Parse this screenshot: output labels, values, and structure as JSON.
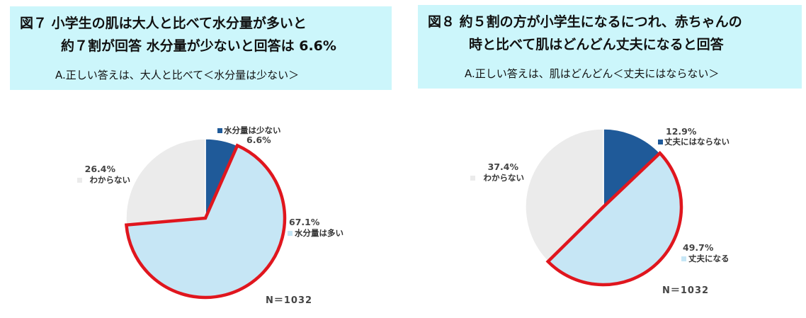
{
  "chart_data": [
    {
      "type": "pie",
      "title_line1": "図７ 小学生の肌は大人と比べて水分量が多いと",
      "title_line2": "約７割が回答 水分量が少ないと回答は 6.6%",
      "answer": "A.正しい答えは、大人と比べて＜水分量は少ない＞",
      "n": "N＝1032",
      "start_angle_deg": 0,
      "slices": [
        {
          "name": "水分量は少ない",
          "value": 6.6,
          "label": "6.6%",
          "color": "#1f5a99",
          "highlight": false
        },
        {
          "name": "水分量は多い",
          "value": 67.1,
          "label": "67.1%",
          "color": "#c6e6f5",
          "highlight": true
        },
        {
          "name": "わからない",
          "value": 26.4,
          "label": "26.4%",
          "color": "#ebebeb",
          "highlight": false
        }
      ]
    },
    {
      "type": "pie",
      "title_line1": "図８ 約５割の方が小学生になるにつれ、赤ちゃんの",
      "title_line2": "時と比べて肌はどんどん丈夫になると回答",
      "answer": "A.正しい答えは、肌はどんどん＜丈夫にはならない＞",
      "n": "N＝1032",
      "start_angle_deg": 0,
      "slices": [
        {
          "name": "丈夫にはならない",
          "value": 12.9,
          "label": "12.9%",
          "color": "#1f5a99",
          "highlight": false
        },
        {
          "name": "丈夫になる",
          "value": 49.7,
          "label": "49.7%",
          "color": "#c6e6f5",
          "highlight": true
        },
        {
          "name": "わからない",
          "value": 37.4,
          "label": "37.4%",
          "color": "#ebebeb",
          "highlight": false
        }
      ]
    }
  ],
  "colors": {
    "header_bg": "#ccf6fb",
    "highlight_stroke": "#e0161e"
  }
}
